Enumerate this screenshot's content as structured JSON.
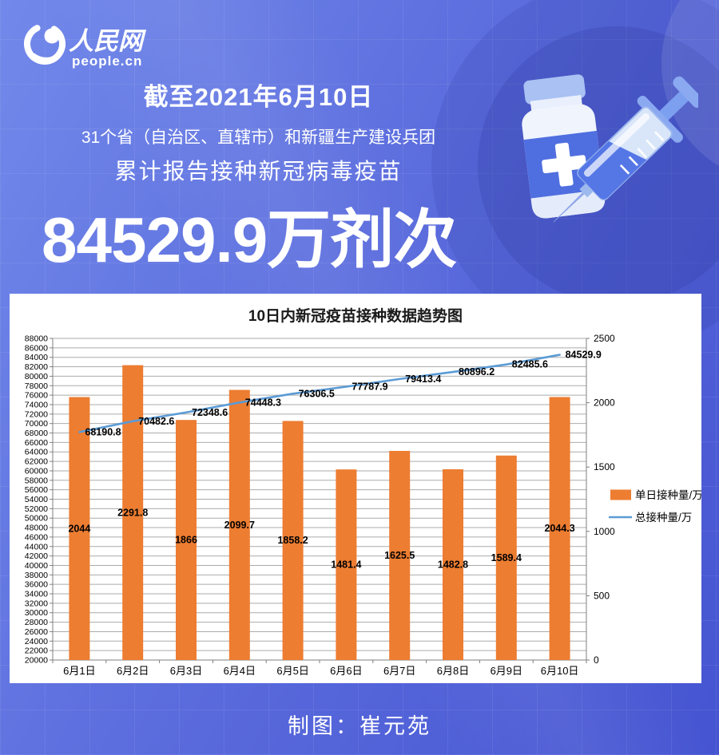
{
  "brand": {
    "logo_cn": "人民网",
    "logo_en": "people.cn"
  },
  "header": {
    "date_line": "截至2021年6月10日",
    "scope_line": "31个省（自治区、直辖市）和新疆生产建设兵团",
    "report_line": "累计报告接种新冠病毒疫苗",
    "big_number": "84529.9万剂次"
  },
  "footer": {
    "credit": "制图：崔元苑"
  },
  "colors": {
    "bar": "#ED7D31",
    "line": "#5B9BD5",
    "grid": "#ababab",
    "axis": "#7f7f7f",
    "background_accent": "#5b6cdd",
    "text_on_blue": "#ffffff"
  },
  "chart_data": {
    "type": "bar",
    "subtype": "bar+line combo, dual axis",
    "title": "10日内新冠疫苗接种数据趋势图",
    "categories": [
      "6月1日",
      "6月2日",
      "6月3日",
      "6月4日",
      "6月5日",
      "6月6日",
      "6月7日",
      "6月8日",
      "6月9日",
      "6月10日"
    ],
    "series": [
      {
        "name": "单日接种量/万",
        "type": "bar",
        "axis": "right",
        "color": "#ED7D31",
        "values": [
          2044,
          2291.8,
          1866,
          2099.7,
          1858.2,
          1481.4,
          1625.5,
          1482.8,
          1589.4,
          2044.3
        ]
      },
      {
        "name": "总接种量/万",
        "type": "line",
        "axis": "left",
        "color": "#5B9BD5",
        "values": [
          68190.8,
          70482.6,
          72348.6,
          74448.3,
          76306.5,
          77787.9,
          79413.4,
          80896.2,
          82485.6,
          84529.9
        ]
      }
    ],
    "left_axis": {
      "min": 20000,
      "max": 88000,
      "step": 2000
    },
    "right_axis": {
      "min": 0,
      "max": 2500,
      "step": 500
    },
    "grid": true,
    "legend_position": "right"
  }
}
